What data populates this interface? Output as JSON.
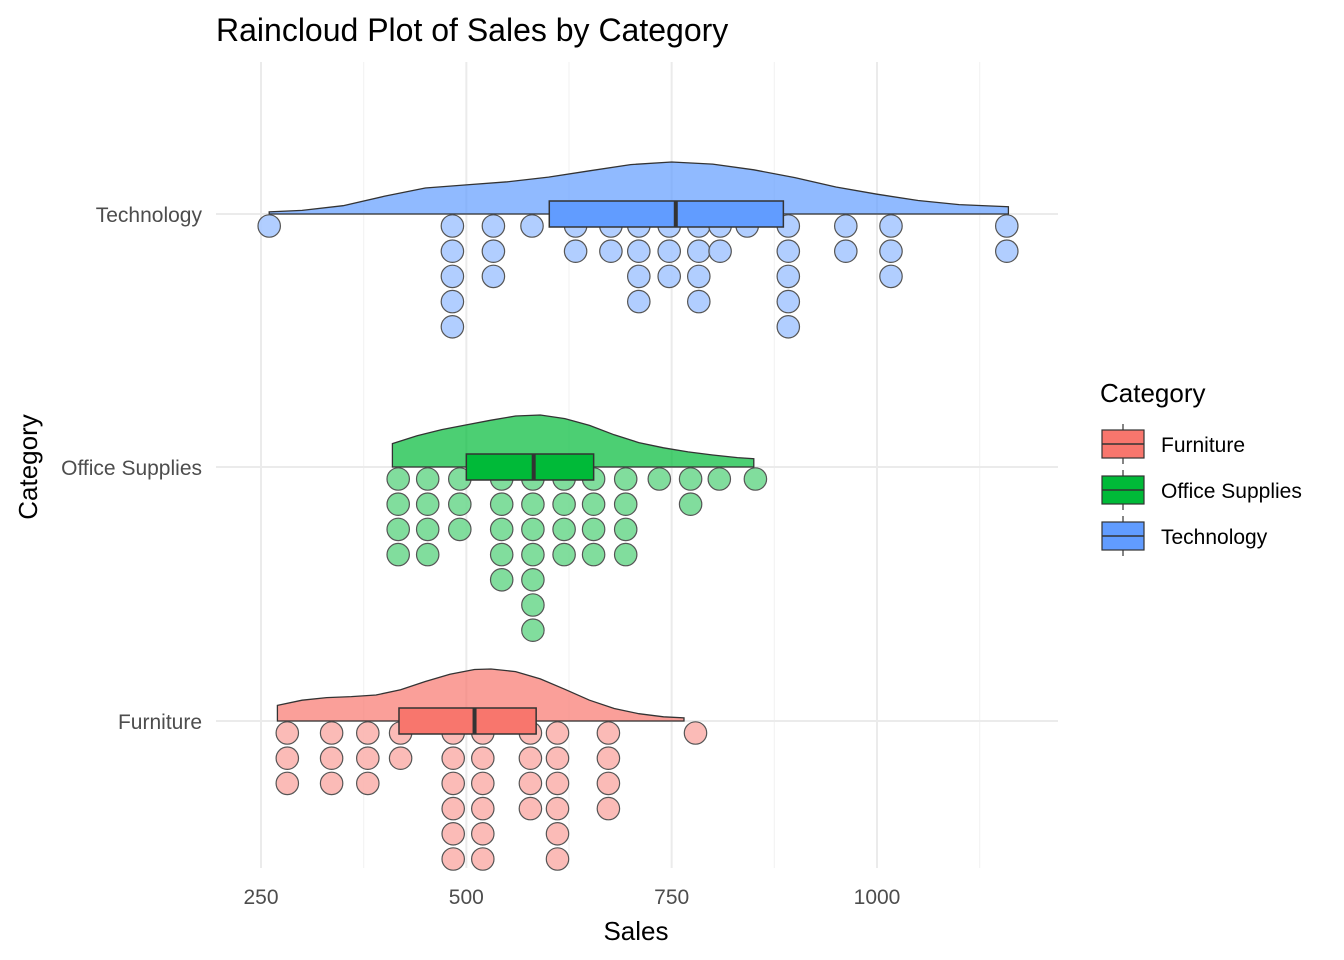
{
  "chart_data": {
    "type": "raincloud",
    "title": "Raincloud Plot of Sales by Category",
    "xlabel": "Sales",
    "ylabel": "Category",
    "xlim": [
      200,
      1240
    ],
    "x_ticks": [
      250,
      500,
      750,
      1000
    ],
    "x_tick_labels": [
      "250",
      "500",
      "750",
      "1000"
    ],
    "categories": [
      "Technology",
      "Office Supplies",
      "Furniture"
    ],
    "grid": true,
    "legend": {
      "title": "Category",
      "position": "right",
      "entries": [
        "Furniture",
        "Office Supplies",
        "Technology"
      ]
    },
    "series": [
      {
        "name": "Technology",
        "color": "#619CFF",
        "box": {
          "q1": 601,
          "median": 755,
          "q3": 886
        },
        "density": [
          [
            260,
            0.04
          ],
          [
            300,
            0.07
          ],
          [
            350,
            0.16
          ],
          [
            400,
            0.34
          ],
          [
            450,
            0.5
          ],
          [
            500,
            0.56
          ],
          [
            550,
            0.62
          ],
          [
            600,
            0.71
          ],
          [
            650,
            0.83
          ],
          [
            700,
            0.95
          ],
          [
            750,
            1.0
          ],
          [
            800,
            0.96
          ],
          [
            850,
            0.85
          ],
          [
            900,
            0.7
          ],
          [
            950,
            0.52
          ],
          [
            1000,
            0.38
          ],
          [
            1050,
            0.26
          ],
          [
            1100,
            0.18
          ],
          [
            1160,
            0.14
          ]
        ],
        "dots": [
          {
            "x": 260,
            "n": 1
          },
          {
            "x": 483,
            "n": 5
          },
          {
            "x": 533,
            "n": 3
          },
          {
            "x": 580,
            "n": 1
          },
          {
            "x": 633,
            "n": 2
          },
          {
            "x": 676,
            "n": 2
          },
          {
            "x": 710,
            "n": 4
          },
          {
            "x": 747,
            "n": 3
          },
          {
            "x": 783,
            "n": 4
          },
          {
            "x": 809,
            "n": 2
          },
          {
            "x": 842,
            "n": 1
          },
          {
            "x": 892,
            "n": 5
          },
          {
            "x": 962,
            "n": 2
          },
          {
            "x": 1017,
            "n": 3
          },
          {
            "x": 1158,
            "n": 2
          }
        ]
      },
      {
        "name": "Office Supplies",
        "color": "#00BA38",
        "box": {
          "q1": 500,
          "median": 582,
          "q3": 655
        },
        "density": [
          [
            410,
            0.45
          ],
          [
            440,
            0.6
          ],
          [
            470,
            0.72
          ],
          [
            500,
            0.81
          ],
          [
            530,
            0.9
          ],
          [
            560,
            0.98
          ],
          [
            590,
            1.0
          ],
          [
            620,
            0.93
          ],
          [
            650,
            0.8
          ],
          [
            680,
            0.62
          ],
          [
            710,
            0.47
          ],
          [
            740,
            0.37
          ],
          [
            770,
            0.29
          ],
          [
            800,
            0.23
          ],
          [
            830,
            0.18
          ],
          [
            850,
            0.16
          ]
        ],
        "dots": [
          {
            "x": 417,
            "n": 4
          },
          {
            "x": 453,
            "n": 4
          },
          {
            "x": 492,
            "n": 3
          },
          {
            "x": 543,
            "n": 5
          },
          {
            "x": 581,
            "n": 7
          },
          {
            "x": 619,
            "n": 4
          },
          {
            "x": 655,
            "n": 4
          },
          {
            "x": 694,
            "n": 4
          },
          {
            "x": 735,
            "n": 1
          },
          {
            "x": 773,
            "n": 2
          },
          {
            "x": 808,
            "n": 1
          },
          {
            "x": 852,
            "n": 1
          }
        ]
      },
      {
        "name": "Furniture",
        "color": "#F8766D",
        "box": {
          "q1": 418,
          "median": 510,
          "q3": 585
        },
        "density": [
          [
            270,
            0.3
          ],
          [
            300,
            0.4
          ],
          [
            330,
            0.45
          ],
          [
            360,
            0.47
          ],
          [
            390,
            0.5
          ],
          [
            420,
            0.6
          ],
          [
            450,
            0.76
          ],
          [
            480,
            0.9
          ],
          [
            510,
            0.99
          ],
          [
            530,
            1.0
          ],
          [
            560,
            0.95
          ],
          [
            590,
            0.81
          ],
          [
            620,
            0.61
          ],
          [
            650,
            0.4
          ],
          [
            680,
            0.24
          ],
          [
            710,
            0.14
          ],
          [
            740,
            0.08
          ],
          [
            765,
            0.06
          ]
        ],
        "dots": [
          {
            "x": 282,
            "n": 3
          },
          {
            "x": 336,
            "n": 3
          },
          {
            "x": 380,
            "n": 3
          },
          {
            "x": 420,
            "n": 2
          },
          {
            "x": 484,
            "n": 6
          },
          {
            "x": 520,
            "n": 6
          },
          {
            "x": 578,
            "n": 4
          },
          {
            "x": 611,
            "n": 6
          },
          {
            "x": 673,
            "n": 4
          },
          {
            "x": 779,
            "n": 1
          }
        ]
      }
    ]
  }
}
